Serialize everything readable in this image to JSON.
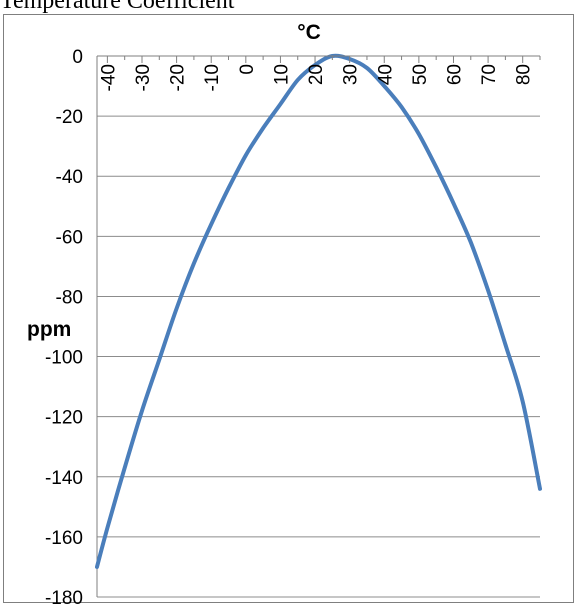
{
  "title": "Temperature Coefficient",
  "chart_data": {
    "type": "line",
    "title": "Temperature Coefficient",
    "xlabel": "°C",
    "ylabel": "ppm",
    "xlim": [
      -43,
      85
    ],
    "ylim": [
      -180,
      0
    ],
    "x_ticks": [
      -40,
      -30,
      -20,
      -10,
      0,
      10,
      20,
      30,
      40,
      50,
      60,
      70,
      80
    ],
    "y_ticks": [
      0,
      -20,
      -40,
      -60,
      -80,
      -100,
      -120,
      -140,
      -160,
      -180
    ],
    "grid": "horizontal",
    "legend": "none",
    "series": [
      {
        "color": "#4a7ebb",
        "x": [
          -43,
          -40,
          -35,
          -30,
          -25,
          -20,
          -15,
          -10,
          -5,
          0,
          5,
          10,
          15,
          20,
          25,
          30,
          35,
          40,
          45,
          50,
          55,
          60,
          65,
          70,
          75,
          80,
          85
        ],
        "y": [
          -170,
          -157,
          -137,
          -118,
          -101,
          -84,
          -69,
          -56,
          -44,
          -33,
          -24,
          -16,
          -8,
          -3,
          0,
          -1,
          -4,
          -10,
          -17,
          -26,
          -37,
          -49,
          -62,
          -78,
          -96,
          -115,
          -144
        ]
      }
    ]
  }
}
